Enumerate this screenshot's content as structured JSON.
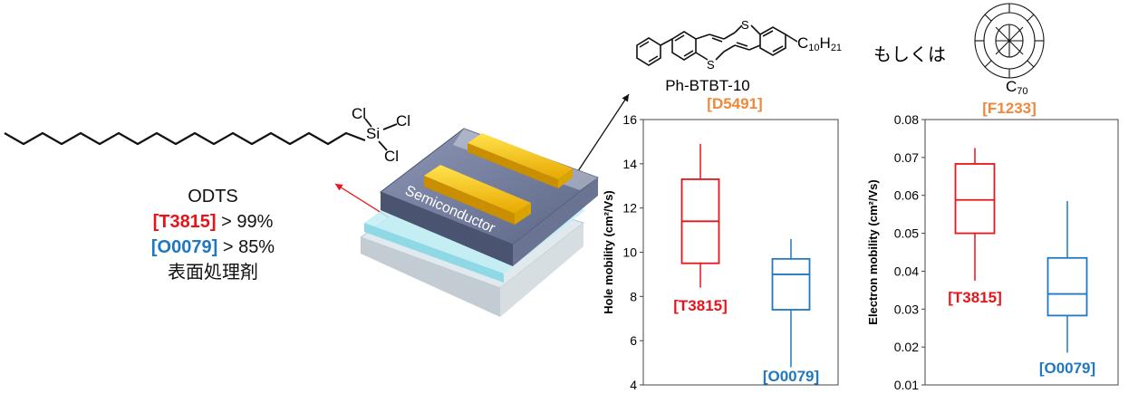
{
  "odts": {
    "name": "ODTS",
    "line1": {
      "code": "[T3815]",
      "purity": "> 99%"
    },
    "line2": {
      "code": "[O0079]",
      "purity": "> 85%"
    },
    "caption": "表面処理剤",
    "atoms": {
      "si": "Si",
      "cl": "Cl"
    }
  },
  "device": {
    "label": "Semiconductor"
  },
  "molecules": {
    "btbt": {
      "name": "Ph-BTBT-10",
      "code": "[D5491]",
      "sulfur": "S",
      "chain": "C10H21",
      "chain_main": "C",
      "chain_sub1": "10",
      "chain_mid": "H",
      "chain_sub2": "21"
    },
    "connector": "もしくは",
    "c70": {
      "name_main": "C",
      "name_sub": "70",
      "code": "[F1233]"
    }
  },
  "colors": {
    "red": "#e8141b",
    "blue": "#1f78c1",
    "orange": "#f0883a"
  },
  "chart_data": [
    {
      "type": "box",
      "ylabel": "Hole mobility (cm²/Vs)",
      "ylim": [
        4,
        16
      ],
      "yticks": [
        "4",
        "6",
        "8",
        "10",
        "12",
        "14",
        "16"
      ],
      "series": [
        {
          "name": "[T3815]",
          "color": "#e8141b",
          "min": 8.4,
          "q1": 9.5,
          "median": 11.4,
          "q3": 13.3,
          "max": 14.9
        },
        {
          "name": "[O0079]",
          "color": "#1f78c1",
          "min": 4.8,
          "q1": 7.4,
          "median": 9.0,
          "q3": 9.7,
          "max": 10.6
        }
      ]
    },
    {
      "type": "box",
      "ylabel": "Electron mobility (cm²/Vs)",
      "ylim": [
        0.01,
        0.08
      ],
      "yticks": [
        "0.01",
        "0.02",
        "0.03",
        "0.04",
        "0.05",
        "0.06",
        "0.07",
        "0.08"
      ],
      "series": [
        {
          "name": "[T3815]",
          "color": "#e8141b",
          "min": 0.0375,
          "q1": 0.05,
          "median": 0.0588,
          "q3": 0.0683,
          "max": 0.0725
        },
        {
          "name": "[O0079]",
          "color": "#1f78c1",
          "min": 0.0185,
          "q1": 0.0283,
          "median": 0.034,
          "q3": 0.0435,
          "max": 0.0585
        }
      ]
    }
  ]
}
